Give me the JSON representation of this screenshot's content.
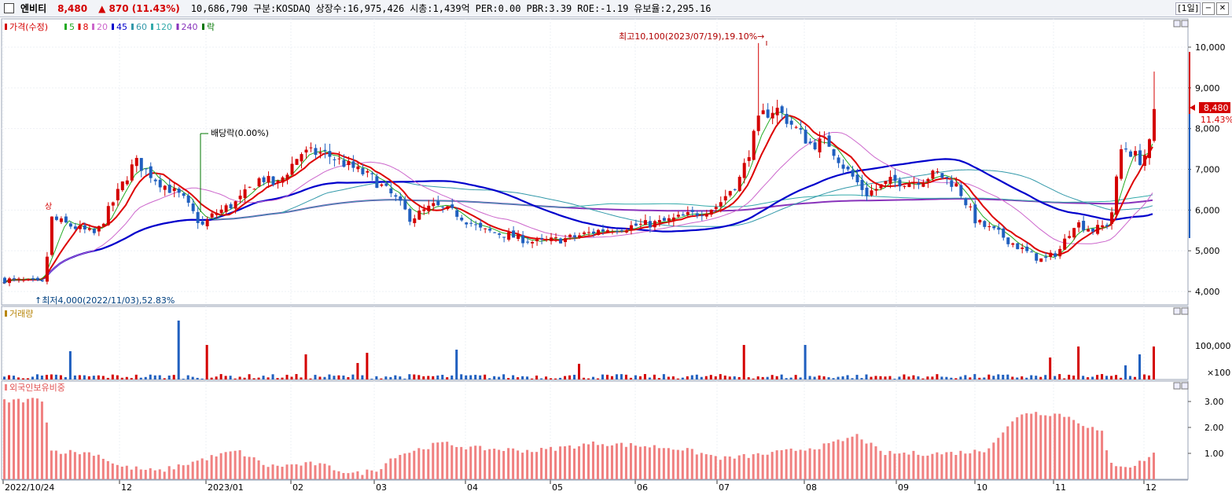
{
  "header": {
    "name": "엔비티",
    "price": "8,480",
    "change": "▲ 870",
    "change_pct": "(11.43%)",
    "volume": "10,686,790",
    "market": "구분:KOSDAQ",
    "shares": "상장수:16,975,426",
    "market_cap": "시총:1,439억",
    "per": "PER:0.00",
    "pbr": "PBR:3.39",
    "roe": "ROE:-1.19",
    "float": "유보율:2,295.16",
    "period": "[1일]",
    "btn_min": "−",
    "btn_close": "✕"
  },
  "price_panel": {
    "legend": [
      {
        "label": "가격(수정)",
        "color": "#d40000"
      },
      {
        "label": "5",
        "color": "#22aa22"
      },
      {
        "label": "8",
        "color": "#dd0000"
      },
      {
        "label": "20",
        "color": "#cc66cc"
      },
      {
        "label": "45",
        "color": "#0000cc"
      },
      {
        "label": "60",
        "color": "#3399aa"
      },
      {
        "label": "120",
        "color": "#33aaaa"
      },
      {
        "label": "240",
        "color": "#8833bb"
      },
      {
        "label": "락",
        "color": "#007700"
      }
    ],
    "annotations": {
      "high": "최고10,100(2023/07/19),19.10%",
      "low": "최저4,000(2022/11/03),52.83%",
      "dividend": "배당락(0.00%)",
      "limit_up": "상"
    },
    "last_price": "8,480",
    "last_pct": "11.43%",
    "y_ticks": [
      "10,000",
      "9,000",
      "8,000",
      "7,000",
      "6,000",
      "5,000",
      "4,000"
    ]
  },
  "volume_panel": {
    "title": "거래량",
    "ticks": [
      "100,000",
      "×100"
    ]
  },
  "foreign_panel": {
    "title": "외국인보유비중",
    "ticks": [
      "3.00",
      "2.00",
      "1.00"
    ]
  },
  "x_axis": [
    "2022/10/24",
    "12",
    "2023/01",
    "02",
    "03",
    "04",
    "05",
    "06",
    "07",
    "08",
    "09",
    "10",
    "11",
    "12"
  ],
  "colors": {
    "up": "#d40000",
    "down": "#1f5fbf",
    "foreign_bar": "#f08080",
    "ma5": "#22aa22",
    "ma8": "#dd0000",
    "ma20": "#cc66cc",
    "ma45": "#0000cc",
    "ma60": "#3399aa",
    "ma120": "#33aaaa",
    "ma240": "#8833bb"
  }
}
